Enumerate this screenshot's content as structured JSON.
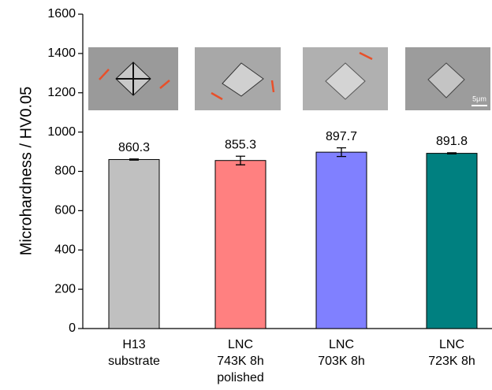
{
  "chart_data": {
    "type": "bar",
    "y_label": "Microhardness / HV0.05",
    "categories": [
      [
        "H13",
        "substrate"
      ],
      [
        "LNC",
        "743K 8h",
        "polished"
      ],
      [
        "LNC",
        "703K 8h"
      ],
      [
        "LNC",
        "723K 8h"
      ]
    ],
    "values": [
      860.3,
      855.3,
      897.7,
      891.8
    ],
    "errors": [
      3,
      22,
      22,
      3
    ],
    "colors": [
      "#c0c0c0",
      "#ff8080",
      "#8080ff",
      "#008080"
    ],
    "ylim": [
      0,
      1600
    ],
    "yticks": [
      0,
      200,
      400,
      600,
      800,
      1000,
      1200,
      1400,
      1600
    ],
    "annotations": [
      "5μm"
    ]
  }
}
